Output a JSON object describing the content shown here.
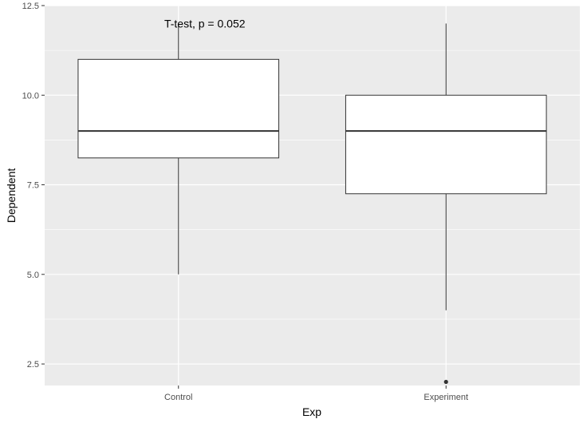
{
  "chart_data": {
    "type": "boxplot",
    "title": "",
    "xlabel": "Exp",
    "ylabel": "Dependent",
    "ylim": [
      1.9,
      12.5
    ],
    "yticks": [
      2.5,
      5.0,
      7.5,
      10.0,
      12.5
    ],
    "ytick_labels": [
      "2.5",
      "5.0",
      "7.5",
      "10.0",
      "12.5"
    ],
    "categories": [
      "Control",
      "Experiment"
    ],
    "boxes": [
      {
        "category": "Control",
        "whisker_low": 5,
        "q1": 8.25,
        "median": 9,
        "q3": 11,
        "whisker_high": 12,
        "outliers": []
      },
      {
        "category": "Experiment",
        "whisker_low": 4,
        "q1": 7.25,
        "median": 9,
        "q3": 10,
        "whisker_high": 12,
        "outliers": [
          2
        ]
      }
    ],
    "annotation": {
      "text": "T-test, p = 0.052",
      "x_category": "Control",
      "y": 12
    },
    "grid": true,
    "colors": {
      "panel_background": "#ebebeb",
      "grid": "#ffffff",
      "box_fill": "#ffffff",
      "box_stroke": "#333333"
    }
  }
}
